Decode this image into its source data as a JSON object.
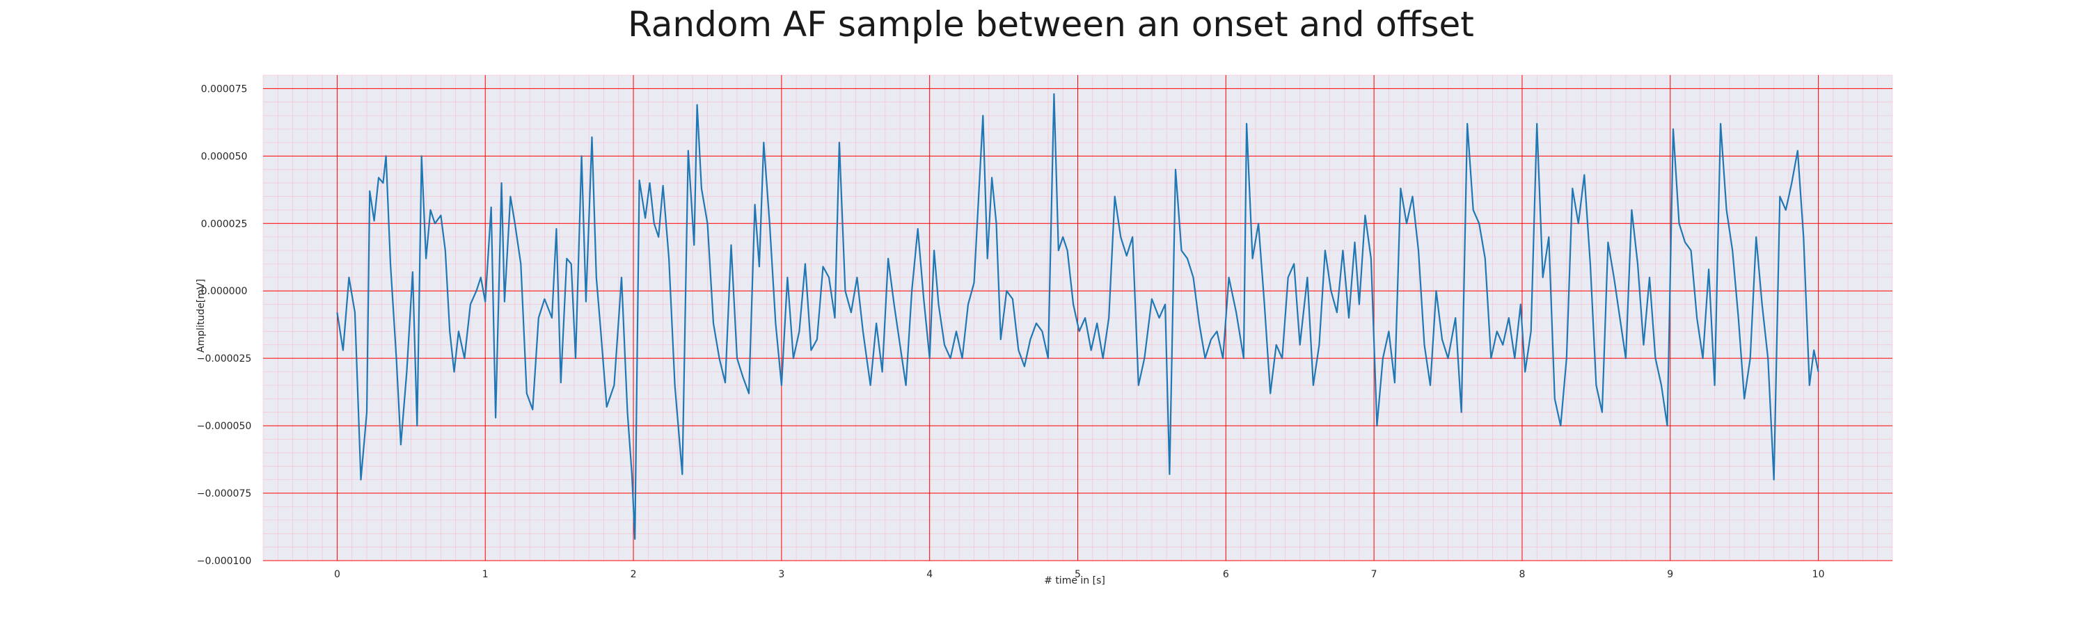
{
  "chart_data": {
    "type": "line",
    "title": "Random AF sample between an onset and offset",
    "xlabel": "# time in [s]",
    "ylabel": "Amplitude[mV]",
    "xlim": [
      -0.5,
      10.5
    ],
    "ylim": [
      -0.0001,
      8e-05
    ],
    "x_ticks": [
      0,
      1,
      2,
      3,
      4,
      5,
      6,
      7,
      8,
      9,
      10
    ],
    "x_tick_labels": [
      "0",
      "1",
      "2",
      "3",
      "4",
      "5",
      "6",
      "7",
      "8",
      "9",
      "10"
    ],
    "y_ticks": [
      -0.0001,
      -7.5e-05,
      -5e-05,
      -2.5e-05,
      0.0,
      2.5e-05,
      5e-05,
      7.5e-05
    ],
    "y_tick_labels": [
      "−0.000100",
      "−0.000075",
      "−0.000050",
      "−0.000025",
      "0.000000",
      "0.000025",
      "0.000050",
      "0.000075"
    ],
    "grid": true,
    "minor_grid": true,
    "colors": {
      "background": "#eaeaf2",
      "major_grid": "#ff0000",
      "minor_grid": "#ff9fb0",
      "line": "#1f77b4"
    },
    "series": [
      {
        "points": [
          [
            0.0,
            -8e-06
          ],
          [
            0.04,
            -2.2e-05
          ],
          [
            0.08,
            5e-06
          ],
          [
            0.12,
            -8e-06
          ],
          [
            0.16,
            -7e-05
          ],
          [
            0.2,
            -4.5e-05
          ],
          [
            0.22,
            3.7e-05
          ],
          [
            0.25,
            2.6e-05
          ],
          [
            0.28,
            4.2e-05
          ],
          [
            0.31,
            4e-05
          ],
          [
            0.33,
            5e-05
          ],
          [
            0.36,
            1e-05
          ],
          [
            0.4,
            -2.5e-05
          ],
          [
            0.43,
            -5.7e-05
          ],
          [
            0.47,
            -3e-05
          ],
          [
            0.51,
            7e-06
          ],
          [
            0.54,
            -5e-05
          ],
          [
            0.57,
            5e-05
          ],
          [
            0.6,
            1.2e-05
          ],
          [
            0.63,
            3e-05
          ],
          [
            0.66,
            2.5e-05
          ],
          [
            0.7,
            2.8e-05
          ],
          [
            0.73,
            1.5e-05
          ],
          [
            0.76,
            -1.5e-05
          ],
          [
            0.79,
            -3e-05
          ],
          [
            0.82,
            -1.5e-05
          ],
          [
            0.86,
            -2.5e-05
          ],
          [
            0.9,
            -5e-06
          ],
          [
            0.94,
            0.0
          ],
          [
            0.97,
            5e-06
          ],
          [
            1.0,
            -4e-06
          ],
          [
            1.04,
            3.1e-05
          ],
          [
            1.07,
            -4.7e-05
          ],
          [
            1.11,
            4e-05
          ],
          [
            1.13,
            -4e-06
          ],
          [
            1.17,
            3.5e-05
          ],
          [
            1.2,
            2.5e-05
          ],
          [
            1.24,
            1e-05
          ],
          [
            1.28,
            -3.8e-05
          ],
          [
            1.32,
            -4.4e-05
          ],
          [
            1.36,
            -1e-05
          ],
          [
            1.4,
            -3e-06
          ],
          [
            1.45,
            -1e-05
          ],
          [
            1.48,
            2.3e-05
          ],
          [
            1.51,
            -3.4e-05
          ],
          [
            1.55,
            1.2e-05
          ],
          [
            1.58,
            1e-05
          ],
          [
            1.61,
            -2.5e-05
          ],
          [
            1.65,
            5e-05
          ],
          [
            1.68,
            -4e-06
          ],
          [
            1.72,
            5.7e-05
          ],
          [
            1.75,
            5e-06
          ],
          [
            1.78,
            -1.5e-05
          ],
          [
            1.82,
            -4.3e-05
          ],
          [
            1.87,
            -3.5e-05
          ],
          [
            1.92,
            5e-06
          ],
          [
            1.96,
            -4.5e-05
          ],
          [
            1.99,
            -6.8e-05
          ],
          [
            2.01,
            -9.2e-05
          ],
          [
            2.04,
            4.1e-05
          ],
          [
            2.08,
            2.7e-05
          ],
          [
            2.11,
            4e-05
          ],
          [
            2.14,
            2.5e-05
          ],
          [
            2.17,
            2e-05
          ],
          [
            2.2,
            3.9e-05
          ],
          [
            2.24,
            1.2e-05
          ],
          [
            2.28,
            -3.5e-05
          ],
          [
            2.33,
            -6.8e-05
          ],
          [
            2.37,
            5.2e-05
          ],
          [
            2.41,
            1.7e-05
          ],
          [
            2.43,
            6.9e-05
          ],
          [
            2.46,
            3.8e-05
          ],
          [
            2.5,
            2.5e-05
          ],
          [
            2.54,
            -1.2e-05
          ],
          [
            2.58,
            -2.5e-05
          ],
          [
            2.62,
            -3.4e-05
          ],
          [
            2.66,
            1.7e-05
          ],
          [
            2.7,
            -2.5e-05
          ],
          [
            2.74,
            -3.2e-05
          ],
          [
            2.78,
            -3.8e-05
          ],
          [
            2.82,
            3.2e-05
          ],
          [
            2.85,
            9e-06
          ],
          [
            2.88,
            5.5e-05
          ],
          [
            2.92,
            2.5e-05
          ],
          [
            2.96,
            -1.2e-05
          ],
          [
            3.0,
            -3.5e-05
          ],
          [
            3.04,
            5e-06
          ],
          [
            3.08,
            -2.5e-05
          ],
          [
            3.12,
            -1.5e-05
          ],
          [
            3.16,
            1e-05
          ],
          [
            3.2,
            -2.2e-05
          ],
          [
            3.24,
            -1.8e-05
          ],
          [
            3.28,
            9e-06
          ],
          [
            3.32,
            5e-06
          ],
          [
            3.36,
            -1e-05
          ],
          [
            3.39,
            5.5e-05
          ],
          [
            3.43,
            0.0
          ],
          [
            3.47,
            -8e-06
          ],
          [
            3.51,
            5e-06
          ],
          [
            3.55,
            -1.5e-05
          ],
          [
            3.6,
            -3.5e-05
          ],
          [
            3.64,
            -1.2e-05
          ],
          [
            3.68,
            -3e-05
          ],
          [
            3.72,
            1.2e-05
          ],
          [
            3.76,
            -5e-06
          ],
          [
            3.8,
            -2e-05
          ],
          [
            3.84,
            -3.5e-05
          ],
          [
            3.88,
            0.0
          ],
          [
            3.92,
            2.3e-05
          ],
          [
            3.96,
            -3e-06
          ],
          [
            4.0,
            -2.5e-05
          ],
          [
            4.03,
            1.5e-05
          ],
          [
            4.06,
            -5e-06
          ],
          [
            4.1,
            -2e-05
          ],
          [
            4.14,
            -2.5e-05
          ],
          [
            4.18,
            -1.5e-05
          ],
          [
            4.22,
            -2.5e-05
          ],
          [
            4.26,
            -5e-06
          ],
          [
            4.3,
            3e-06
          ],
          [
            4.36,
            6.5e-05
          ],
          [
            4.39,
            1.2e-05
          ],
          [
            4.42,
            4.2e-05
          ],
          [
            4.45,
            2.5e-05
          ],
          [
            4.48,
            -1.8e-05
          ],
          [
            4.52,
            0.0
          ],
          [
            4.56,
            -3e-06
          ],
          [
            4.6,
            -2.2e-05
          ],
          [
            4.64,
            -2.8e-05
          ],
          [
            4.68,
            -1.8e-05
          ],
          [
            4.72,
            -1.2e-05
          ],
          [
            4.76,
            -1.5e-05
          ],
          [
            4.8,
            -2.5e-05
          ],
          [
            4.84,
            7.3e-05
          ],
          [
            4.87,
            1.5e-05
          ],
          [
            4.9,
            2e-05
          ],
          [
            4.93,
            1.5e-05
          ],
          [
            4.97,
            -5e-06
          ],
          [
            5.01,
            -1.5e-05
          ],
          [
            5.05,
            -1e-05
          ],
          [
            5.09,
            -2.2e-05
          ],
          [
            5.13,
            -1.2e-05
          ],
          [
            5.17,
            -2.5e-05
          ],
          [
            5.21,
            -1e-05
          ],
          [
            5.25,
            3.5e-05
          ],
          [
            5.29,
            2e-05
          ],
          [
            5.33,
            1.3e-05
          ],
          [
            5.37,
            2e-05
          ],
          [
            5.41,
            -3.5e-05
          ],
          [
            5.45,
            -2.5e-05
          ],
          [
            5.5,
            -3e-06
          ],
          [
            5.55,
            -1e-05
          ],
          [
            5.59,
            -5e-06
          ],
          [
            5.62,
            -6.8e-05
          ],
          [
            5.66,
            4.5e-05
          ],
          [
            5.7,
            1.5e-05
          ],
          [
            5.74,
            1.2e-05
          ],
          [
            5.78,
            5e-06
          ],
          [
            5.82,
            -1.2e-05
          ],
          [
            5.86,
            -2.5e-05
          ],
          [
            5.9,
            -1.8e-05
          ],
          [
            5.94,
            -1.5e-05
          ],
          [
            5.98,
            -2.5e-05
          ],
          [
            6.02,
            5e-06
          ],
          [
            6.07,
            -8e-06
          ],
          [
            6.12,
            -2.5e-05
          ],
          [
            6.14,
            6.2e-05
          ],
          [
            6.18,
            1.2e-05
          ],
          [
            6.22,
            2.5e-05
          ],
          [
            6.26,
            -5e-06
          ],
          [
            6.3,
            -3.8e-05
          ],
          [
            6.34,
            -2e-05
          ],
          [
            6.38,
            -2.5e-05
          ],
          [
            6.42,
            5e-06
          ],
          [
            6.46,
            1e-05
          ],
          [
            6.5,
            -2e-05
          ],
          [
            6.55,
            5e-06
          ],
          [
            6.59,
            -3.5e-05
          ],
          [
            6.63,
            -2e-05
          ],
          [
            6.67,
            1.5e-05
          ],
          [
            6.71,
            0.0
          ],
          [
            6.75,
            -8e-06
          ],
          [
            6.79,
            1.5e-05
          ],
          [
            6.83,
            -1e-05
          ],
          [
            6.87,
            1.8e-05
          ],
          [
            6.9,
            -5e-06
          ],
          [
            6.94,
            2.8e-05
          ],
          [
            6.98,
            1.2e-05
          ],
          [
            7.02,
            -5e-05
          ],
          [
            7.06,
            -2.5e-05
          ],
          [
            7.1,
            -1.5e-05
          ],
          [
            7.14,
            -3.4e-05
          ],
          [
            7.18,
            3.8e-05
          ],
          [
            7.22,
            2.5e-05
          ],
          [
            7.26,
            3.5e-05
          ],
          [
            7.3,
            1.5e-05
          ],
          [
            7.34,
            -2e-05
          ],
          [
            7.38,
            -3.5e-05
          ],
          [
            7.42,
            0.0
          ],
          [
            7.46,
            -1.8e-05
          ],
          [
            7.5,
            -2.5e-05
          ],
          [
            7.55,
            -1e-05
          ],
          [
            7.59,
            -4.5e-05
          ],
          [
            7.63,
            6.2e-05
          ],
          [
            7.67,
            3e-05
          ],
          [
            7.71,
            2.5e-05
          ],
          [
            7.75,
            1.2e-05
          ],
          [
            7.79,
            -2.5e-05
          ],
          [
            7.83,
            -1.5e-05
          ],
          [
            7.87,
            -2e-05
          ],
          [
            7.91,
            -1e-05
          ],
          [
            7.95,
            -2.5e-05
          ],
          [
            7.99,
            -5e-06
          ],
          [
            8.02,
            -3e-05
          ],
          [
            8.06,
            -1.5e-05
          ],
          [
            8.1,
            6.2e-05
          ],
          [
            8.14,
            5e-06
          ],
          [
            8.18,
            2e-05
          ],
          [
            8.22,
            -4e-05
          ],
          [
            8.26,
            -5e-05
          ],
          [
            8.3,
            -2.5e-05
          ],
          [
            8.34,
            3.8e-05
          ],
          [
            8.38,
            2.5e-05
          ],
          [
            8.42,
            4.3e-05
          ],
          [
            8.46,
            1e-05
          ],
          [
            8.5,
            -3.5e-05
          ],
          [
            8.54,
            -4.5e-05
          ],
          [
            8.58,
            1.8e-05
          ],
          [
            8.62,
            5e-06
          ],
          [
            8.66,
            -1e-05
          ],
          [
            8.7,
            -2.5e-05
          ],
          [
            8.74,
            3e-05
          ],
          [
            8.78,
            1e-05
          ],
          [
            8.82,
            -2e-05
          ],
          [
            8.86,
            5e-06
          ],
          [
            8.9,
            -2.5e-05
          ],
          [
            8.94,
            -3.5e-05
          ],
          [
            8.98,
            -5e-05
          ],
          [
            9.02,
            6e-05
          ],
          [
            9.06,
            2.5e-05
          ],
          [
            9.1,
            1.8e-05
          ],
          [
            9.14,
            1.5e-05
          ],
          [
            9.18,
            -1e-05
          ],
          [
            9.22,
            -2.5e-05
          ],
          [
            9.26,
            8e-06
          ],
          [
            9.3,
            -3.5e-05
          ],
          [
            9.34,
            6.2e-05
          ],
          [
            9.38,
            3e-05
          ],
          [
            9.42,
            1.5e-05
          ],
          [
            9.46,
            -1e-05
          ],
          [
            9.5,
            -4e-05
          ],
          [
            9.54,
            -2.5e-05
          ],
          [
            9.58,
            2e-05
          ],
          [
            9.62,
            -5e-06
          ],
          [
            9.66,
            -2.5e-05
          ],
          [
            9.7,
            -7e-05
          ],
          [
            9.74,
            3.5e-05
          ],
          [
            9.78,
            3e-05
          ],
          [
            9.82,
            4e-05
          ],
          [
            9.86,
            5.2e-05
          ],
          [
            9.9,
            2e-05
          ],
          [
            9.94,
            -3.5e-05
          ],
          [
            9.97,
            -2.2e-05
          ],
          [
            10.0,
            -3e-05
          ]
        ]
      }
    ]
  }
}
